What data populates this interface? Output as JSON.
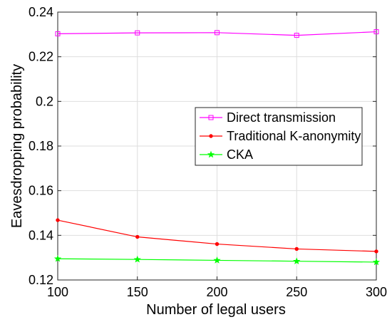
{
  "chart_data": {
    "type": "line",
    "xlabel": "Number of legal users",
    "ylabel": "Eavesdropping probability",
    "x": [
      100,
      150,
      200,
      250,
      300
    ],
    "xlim": [
      100,
      300
    ],
    "ylim": [
      0.12,
      0.24
    ],
    "xticks": [
      "100",
      "150",
      "200",
      "250",
      "300"
    ],
    "yticks": [
      "0.12",
      "0.14",
      "0.16",
      "0.18",
      "0.2",
      "0.22",
      "0.24"
    ],
    "grid": true,
    "legend_position": "center-right",
    "series": [
      {
        "name": "Direct transmission",
        "color": "#ff00ff",
        "marker": "square",
        "values": [
          0.2303,
          0.2307,
          0.2308,
          0.2296,
          0.2312
        ]
      },
      {
        "name": "Traditional K-anonymity",
        "color": "#ff0000",
        "marker": "dot",
        "values": [
          0.1468,
          0.1393,
          0.1361,
          0.1339,
          0.1328
        ]
      },
      {
        "name": "CKA",
        "color": "#00ff00",
        "marker": "star",
        "values": [
          0.1295,
          0.1292,
          0.1288,
          0.1284,
          0.128
        ]
      }
    ]
  }
}
